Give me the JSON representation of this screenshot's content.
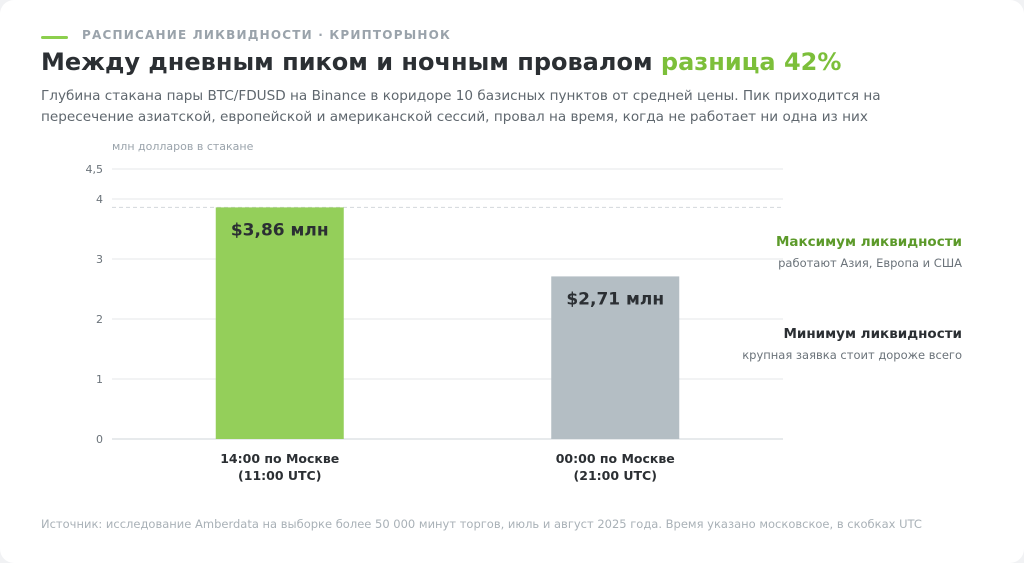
{
  "header": {
    "kicker": "РАСПИСАНИЕ ЛИКВИДНОСТИ · КРИПТОРЫНОК",
    "title_main": "Между дневным пиком и ночным провалом",
    "title_accent": "разница 42%",
    "subtitle": "Глубина стакана пары BTC/FDUSD на Binance в коридоре 10 базисных пунктов от средней цены. Пик приходится на пересечение азиатской, европейской и американской сессий, провал на время, когда не работает ни одна из них"
  },
  "annotations": {
    "max_title": "Максимум ликвидности",
    "max_sub": "работают Азия, Европа и США",
    "min_title": "Минимум ликвидности",
    "min_sub": "крупная заявка стоит дороже всего"
  },
  "footer": {
    "source": "Источник: исследование Amberdata на выборке более 50 000 минут торгов, июль и август 2025 года. Время указано московское, в скобках UTC"
  },
  "chart_data": {
    "type": "bar",
    "ylabel": "млн долларов в стакане",
    "ylim": [
      0,
      4.5
    ],
    "yticks": [
      0,
      1,
      2,
      3,
      4,
      4.5
    ],
    "ytick_labels": [
      "0",
      "1",
      "2",
      "3",
      "4",
      "4,5"
    ],
    "categories": [
      [
        "14:00 по Москве",
        "(11:00 UTC)"
      ],
      [
        "00:00 по Москве",
        "(21:00 UTC)"
      ]
    ],
    "values": [
      3.86,
      2.71
    ],
    "value_labels": [
      "$3,86 млн",
      "$2,71 млн"
    ],
    "reference_line": 3.86,
    "colors": [
      "#94cf5a",
      "#b4bec4"
    ],
    "grid": true
  }
}
